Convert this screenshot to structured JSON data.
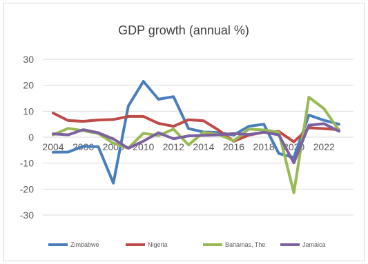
{
  "chart_data": {
    "type": "line",
    "title": "GDP growth (annual %)",
    "xlabel": "",
    "ylabel": "",
    "ylim": [
      -30,
      30
    ],
    "yticks": [
      30,
      20,
      10,
      0,
      -10,
      -20,
      -30
    ],
    "x": [
      2004,
      2005,
      2006,
      2007,
      2008,
      2009,
      2010,
      2011,
      2012,
      2013,
      2014,
      2015,
      2016,
      2017,
      2018,
      2019,
      2020,
      2021,
      2022,
      2023
    ],
    "xtick_labels": [
      "2004",
      "2006",
      "2008",
      "2010",
      "2012",
      "2014",
      "2016",
      "2018",
      "2020",
      "2022"
    ],
    "grid": "horizontal",
    "legend_position": "bottom",
    "series": [
      {
        "name": "Zimbabwe",
        "color": "#4a7ebb",
        "values": [
          -5.8,
          -5.7,
          -3.5,
          -3.7,
          -17.7,
          12.0,
          21.5,
          14.6,
          15.6,
          3.3,
          2.0,
          1.8,
          0.8,
          4.2,
          5.0,
          -6.3,
          -7.8,
          8.5,
          6.5,
          5.0
        ]
      },
      {
        "name": "Nigeria",
        "color": "#be4b48",
        "values": [
          9.3,
          6.4,
          6.1,
          6.6,
          6.8,
          8.0,
          8.0,
          5.3,
          4.2,
          6.7,
          6.3,
          2.7,
          -1.6,
          0.8,
          1.9,
          2.2,
          -1.8,
          3.6,
          3.3,
          2.9
        ]
      },
      {
        "name": "Bahamas, The",
        "color": "#98b954",
        "values": [
          0.9,
          3.4,
          2.5,
          1.4,
          -2.3,
          -4.2,
          1.5,
          0.6,
          3.1,
          -3.0,
          1.9,
          1.0,
          -1.4,
          3.1,
          2.8,
          1.9,
          -21.4,
          15.4,
          11.0,
          2.6
        ]
      },
      {
        "name": "Jamaica",
        "color": "#7d60a0",
        "values": [
          1.3,
          0.9,
          2.9,
          1.7,
          -0.7,
          -4.3,
          -1.5,
          1.7,
          -0.6,
          0.5,
          0.7,
          0.9,
          1.4,
          1.0,
          1.9,
          0.9,
          -9.9,
          4.6,
          5.2,
          2.3
        ]
      }
    ]
  }
}
